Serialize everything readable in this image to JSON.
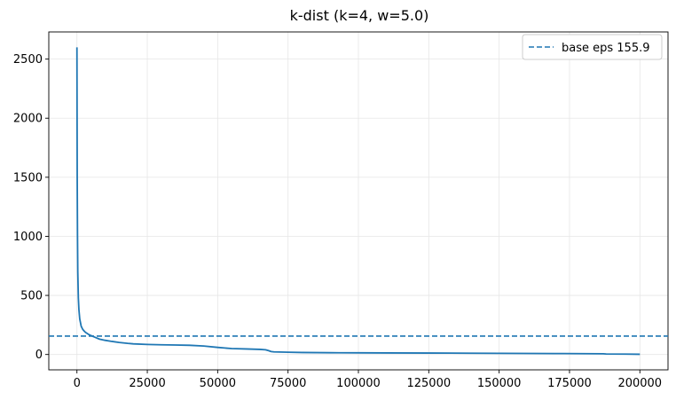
{
  "chart_data": {
    "type": "line",
    "title": "k-dist (k=4, w=5.0)",
    "xlabel": "",
    "ylabel": "",
    "xlim": [
      -10000,
      210000
    ],
    "ylim": [
      -130,
      2730
    ],
    "xticks": [
      0,
      25000,
      50000,
      75000,
      100000,
      125000,
      150000,
      175000,
      200000
    ],
    "yticks": [
      0,
      500,
      1000,
      1500,
      2000,
      2500
    ],
    "grid": true,
    "legend_position": "top-right",
    "series": [
      {
        "style": "solid",
        "color": "#1f77b4",
        "x": [
          0,
          50,
          100,
          200,
          300,
          500,
          700,
          1000,
          1500,
          2000,
          2500,
          3000,
          4000,
          5000,
          6000,
          7000,
          8000,
          10000,
          12000,
          15000,
          18000,
          20000,
          25000,
          30000,
          35000,
          40000,
          45000,
          50000,
          55000,
          60000,
          65000,
          67000,
          68000,
          69000,
          70000,
          75000,
          80000,
          90000,
          100000,
          110000,
          125000,
          140000,
          150000,
          160000,
          170000,
          180000,
          187000,
          188000,
          195000,
          200000
        ],
        "y": [
          2600,
          2000,
          1500,
          1000,
          700,
          480,
          380,
          300,
          240,
          215,
          200,
          188,
          172,
          160,
          150,
          140,
          130,
          120,
          112,
          102,
          94,
          90,
          85,
          82,
          80,
          78,
          72,
          60,
          50,
          47,
          43,
          40,
          33,
          25,
          22,
          19,
          17,
          15,
          14,
          13,
          12,
          11,
          10,
          9,
          8,
          7,
          6,
          4,
          3,
          2
        ]
      },
      {
        "name": "base eps 155.9",
        "style": "dashed",
        "color": "#1f77b4",
        "hline": 155.9
      }
    ],
    "legend": [
      "base eps 155.9"
    ]
  }
}
